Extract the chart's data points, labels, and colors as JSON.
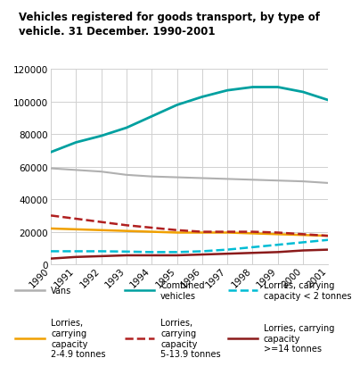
{
  "title": "Vehicles registered for goods transport, by type of\nvehicle. 31 December. 1990-2001",
  "years": [
    1990,
    1991,
    1992,
    1993,
    1994,
    1995,
    1996,
    1997,
    1998,
    1999,
    2000,
    2001
  ],
  "series": {
    "Vans": {
      "values": [
        59000,
        58000,
        57000,
        55000,
        54000,
        53500,
        53000,
        52500,
        52000,
        51500,
        51000,
        50000
      ],
      "color": "#b0b0b0",
      "linestyle": "solid",
      "linewidth": 1.5
    },
    "Combined vehicles": {
      "values": [
        69000,
        75000,
        79000,
        84000,
        91000,
        98000,
        103000,
        107000,
        109000,
        109000,
        106000,
        101000
      ],
      "color": "#00a0a0",
      "linestyle": "solid",
      "linewidth": 2.0
    },
    "Lorries, carrying capacity < 2 tonnes": {
      "values": [
        8000,
        8000,
        8000,
        7800,
        7500,
        7500,
        8000,
        9000,
        10500,
        12000,
        13500,
        15000
      ],
      "color": "#00bcd4",
      "linestyle": "dashed",
      "linewidth": 1.8
    },
    "Lorries, carrying capacity 2-4.9 tonnes": {
      "values": [
        22000,
        21500,
        21000,
        20500,
        20000,
        19500,
        19500,
        19500,
        19000,
        18500,
        18000,
        17500
      ],
      "color": "#f0a000",
      "linestyle": "solid",
      "linewidth": 1.8
    },
    "Lorries, carrying capacity 5-13.9 tonnes": {
      "values": [
        30000,
        28000,
        26000,
        24000,
        22500,
        21000,
        20000,
        20000,
        20000,
        19500,
        18500,
        17500
      ],
      "color": "#b02020",
      "linestyle": "dashed",
      "linewidth": 1.8
    },
    "Lorries, carrying capacity >=14 tonnes": {
      "values": [
        3500,
        4500,
        5000,
        5500,
        5500,
        5500,
        6000,
        6500,
        7000,
        7500,
        8500,
        9000
      ],
      "color": "#8b1a1a",
      "linestyle": "solid",
      "linewidth": 1.8
    }
  },
  "ylim": [
    0,
    120000
  ],
  "yticks": [
    0,
    20000,
    40000,
    60000,
    80000,
    100000,
    120000
  ],
  "background_color": "#ffffff",
  "grid_color": "#d0d0d0",
  "title_color": "#000000",
  "title_fontsize": 8.5,
  "tick_fontsize": 7.5,
  "legend_fontsize": 7.0,
  "title_bar_color": "#4ec9c9",
  "legend_items": [
    {
      "label": "Vans",
      "color": "#b0b0b0",
      "linestyle": "solid"
    },
    {
      "label": "Combined\nvehicles",
      "color": "#00a0a0",
      "linestyle": "solid"
    },
    {
      "label": "Lorries, carrying\ncapacity < 2 tonnes",
      "color": "#00bcd4",
      "linestyle": "dashed"
    },
    {
      "label": "Lorries,\ncarrying\ncapacity\n2-4.9 tonnes",
      "color": "#f0a000",
      "linestyle": "solid"
    },
    {
      "label": "Lorries,\ncarrying\ncapacity\n5-13.9 tonnes",
      "color": "#b02020",
      "linestyle": "dashed"
    },
    {
      "label": "Lorries, carrying\ncapacity\n>=14 tonnes",
      "color": "#8b1a1a",
      "linestyle": "solid"
    }
  ]
}
